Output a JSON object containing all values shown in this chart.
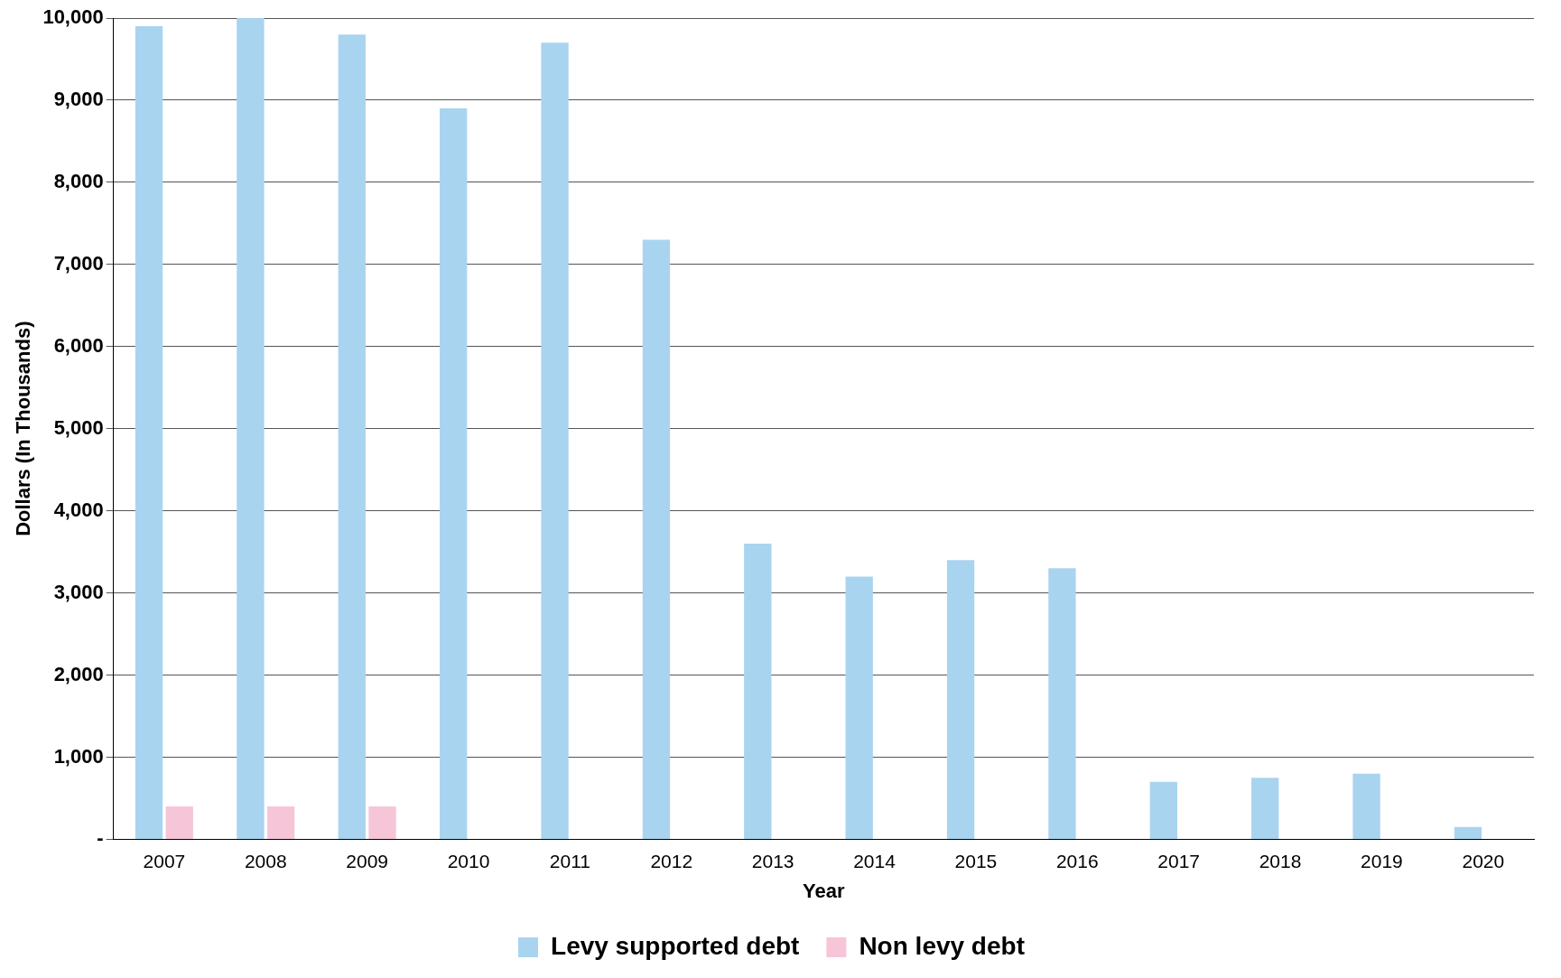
{
  "chart_data": {
    "type": "bar",
    "xlabel": "Year",
    "ylabel": "Dollars (In Thousands)",
    "categories": [
      "2007",
      "2008",
      "2009",
      "2010",
      "2011",
      "2012",
      "2013",
      "2014",
      "2015",
      "2016",
      "2017",
      "2018",
      "2019",
      "2020"
    ],
    "series": [
      {
        "name": "Levy supported debt",
        "color": "#a9d4f0",
        "values": [
          9900,
          10000,
          9800,
          8900,
          9700,
          7300,
          3600,
          3200,
          3400,
          3300,
          700,
          750,
          800,
          150
        ]
      },
      {
        "name": "Non levy debt",
        "color": "#f6c6d8",
        "values": [
          400,
          400,
          400,
          0,
          0,
          0,
          0,
          0,
          0,
          0,
          0,
          0,
          0,
          0
        ]
      }
    ],
    "ylim": [
      0,
      10000
    ],
    "yticks": [
      {
        "value": 0,
        "label": "-"
      },
      {
        "value": 1000,
        "label": "1,000"
      },
      {
        "value": 2000,
        "label": "2,000"
      },
      {
        "value": 3000,
        "label": "3,000"
      },
      {
        "value": 4000,
        "label": "4,000"
      },
      {
        "value": 5000,
        "label": "5,000"
      },
      {
        "value": 6000,
        "label": "6,000"
      },
      {
        "value": 7000,
        "label": "7,000"
      },
      {
        "value": 8000,
        "label": "8,000"
      },
      {
        "value": 9000,
        "label": "9,000"
      },
      {
        "value": 10000,
        "label": "10,000"
      }
    ],
    "grid": "y",
    "legend": "bottom"
  }
}
